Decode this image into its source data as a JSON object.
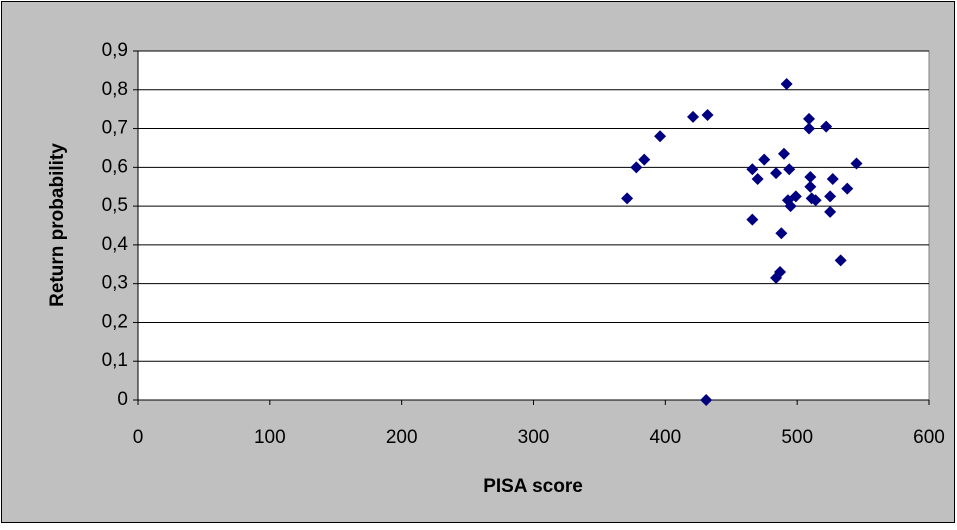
{
  "chart_data": {
    "type": "scatter",
    "xlabel": "PISA score",
    "ylabel": "Return probability",
    "xlim": [
      0,
      600
    ],
    "xticks": [
      0,
      100,
      200,
      300,
      400,
      500,
      600
    ],
    "ylim": [
      0,
      0.9
    ],
    "yticks": [
      0,
      {
        "value": 0.1,
        "label": "0,1"
      },
      {
        "value": 0.2,
        "label": "0,2"
      },
      {
        "value": 0.3,
        "label": "0,3"
      },
      {
        "value": 0.4,
        "label": "0,4"
      },
      {
        "value": 0.5,
        "label": "0,5"
      },
      {
        "value": 0.6,
        "label": "0,6"
      },
      {
        "value": 0.7,
        "label": "0,7"
      },
      {
        "value": 0.8,
        "label": "0,8"
      },
      {
        "value": 0.9,
        "label": "0,9"
      }
    ],
    "grid": true,
    "color": "#000080",
    "x": [
      371,
      378,
      384,
      396,
      421,
      432,
      431,
      466,
      470,
      475,
      466,
      484,
      488,
      487,
      484,
      492,
      490,
      494,
      493,
      495,
      499,
      509,
      509,
      510,
      510,
      511,
      514,
      522,
      527,
      525,
      525,
      533,
      538,
      545
    ],
    "values": [
      0.52,
      0.6,
      0.62,
      0.68,
      0.73,
      0.735,
      0,
      0.595,
      0.57,
      0.62,
      0.465,
      0.585,
      0.43,
      0.33,
      0.315,
      0.815,
      0.635,
      0.595,
      0.515,
      0.5,
      0.525,
      0.725,
      0.7,
      0.575,
      0.55,
      0.52,
      0.515,
      0.705,
      0.57,
      0.525,
      0.485,
      0.36,
      0.545,
      0.61
    ]
  }
}
